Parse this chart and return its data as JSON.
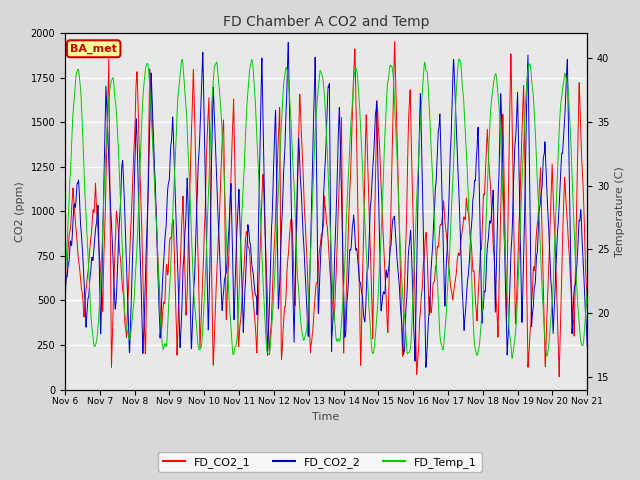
{
  "title": "FD Chamber A CO2 and Temp",
  "xlabel": "Time",
  "ylabel_left": "CO2 (ppm)",
  "ylabel_right": "Temperature (C)",
  "ylim_left": [
    0,
    2000
  ],
  "ylim_right": [
    14,
    42
  ],
  "legend_labels": [
    "FD_CO2_1",
    "FD_CO2_2",
    "FD_Temp_1"
  ],
  "line_colors": [
    "#ff0000",
    "#0000cc",
    "#00cc00"
  ],
  "annotation_text": "BA_met",
  "annotation_color": "#cc0000",
  "annotation_bg": "#ffff99",
  "xtick_labels": [
    "Nov 6",
    "Nov 7",
    "Nov 8",
    "Nov 9",
    "Nov 10",
    "Nov 11",
    "Nov 12",
    "Nov 13",
    "Nov 14",
    "Nov 15",
    "Nov 16",
    "Nov 17",
    "Nov 18",
    "Nov 19",
    "Nov 20",
    "Nov 21"
  ],
  "bg_color": "#d8d8d8",
  "plot_bg_color": "#e8e8e8",
  "n_days": 15,
  "seed": 42
}
